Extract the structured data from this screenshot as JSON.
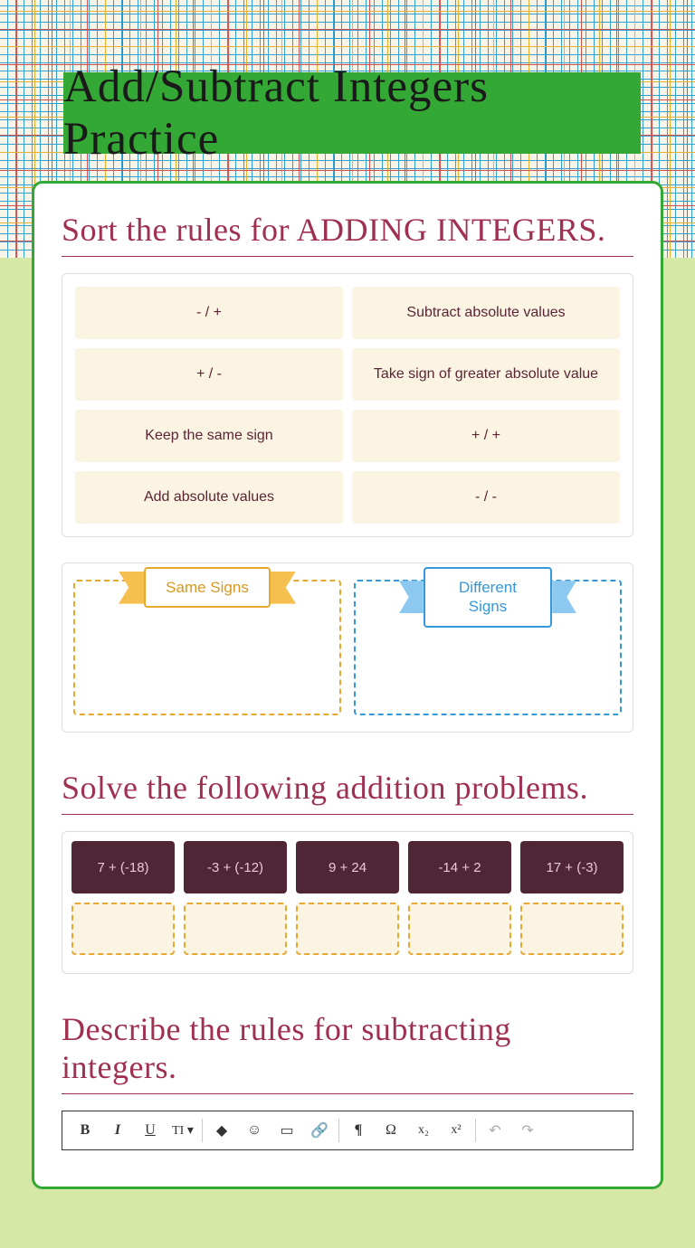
{
  "title": "Add/Subtract Integers Practice",
  "section1": {
    "heading": "Sort the rules for ADDING INTEGERS.",
    "rules": [
      "- / +",
      "Subtract absolute values",
      "+ / -",
      "Take sign of greater absolute value",
      "Keep the same sign",
      "+ / +",
      "Add absolute values",
      "- / -"
    ],
    "zones": {
      "same": "Same Signs",
      "diff": "Different Signs"
    }
  },
  "section2": {
    "heading": "Solve the following addition problems.",
    "problems": [
      "7 + (-18)",
      "-3 + (-12)",
      "9 + 24",
      "-14 + 2",
      "17 + (-3)"
    ]
  },
  "section3": {
    "heading": "Describe the rules for subtracting integers.",
    "toolbar": {
      "bold": "B",
      "italic": "I",
      "underline": "U",
      "textstyle": "T‍I ▾",
      "color": "◆",
      "emoji": "☺",
      "image": "▭",
      "link": "🔗",
      "para": "¶",
      "omega": "Ω",
      "sub": "x₂",
      "sup": "x²",
      "undo": "↶",
      "redo": "↷"
    }
  },
  "colors": {
    "accent_green": "#34a834",
    "heading": "#a03050",
    "chip_bg": "#fcf4e3",
    "chip_text": "#5a2535",
    "same_border": "#e8a830",
    "diff_border": "#3498db",
    "prob_bg": "#4f2635",
    "prob_text": "#e8c8d8",
    "bg_bottom": "#d5e8a6"
  }
}
